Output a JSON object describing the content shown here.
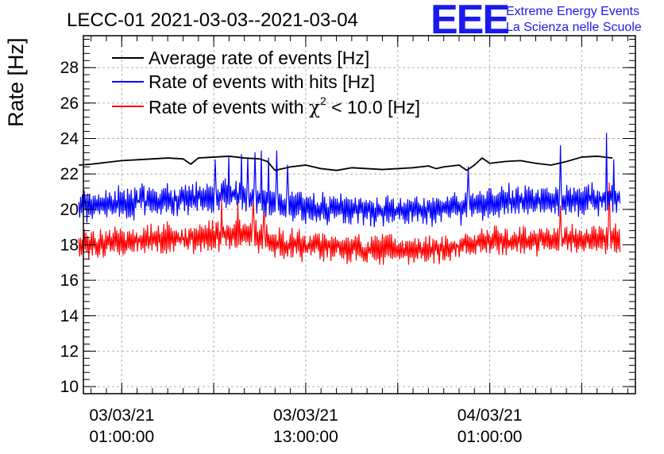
{
  "chart_data": {
    "type": "line",
    "title": "LECC-01 2021-03-03--2021-03-04",
    "xlabel": "",
    "ylabel": "Rate [Hz]",
    "ylim": [
      9.6,
      29.8
    ],
    "y_ticks": [
      10,
      12,
      14,
      16,
      18,
      20,
      22,
      24,
      26,
      28
    ],
    "xlim_hours": [
      -2.5,
      33.5
    ],
    "x_ticks": [
      {
        "hour": 0,
        "label_date": "03/03/21",
        "label_time": "01:00:00"
      },
      {
        "hour": 12,
        "label_date": "03/03/21",
        "label_time": "13:00:00"
      },
      {
        "hour": 24,
        "label_date": "04/03/21",
        "label_time": "01:00:00"
      }
    ],
    "grid": true,
    "legend_position": "top-left",
    "series": [
      {
        "name": "Average rate of events [Hz]",
        "color": "#000000",
        "style": "smooth",
        "x_hours": [
          -2.8,
          -2.0,
          -1.0,
          0.0,
          1.0,
          2.0,
          3.0,
          4.0,
          4.5,
          5.0,
          6.0,
          7.0,
          8.0,
          9.0,
          9.5,
          10.0,
          10.5,
          11.0,
          12.0,
          13.0,
          14.0,
          15.0,
          16.0,
          17.0,
          18.0,
          19.0,
          20.0,
          20.5,
          21.0,
          22.0,
          22.5,
          23.0,
          23.5,
          24.0,
          25.0,
          26.0,
          27.0,
          28.0,
          29.0,
          30.0,
          31.0,
          32.0
        ],
        "values": [
          22.5,
          22.55,
          22.65,
          22.75,
          22.8,
          22.85,
          22.9,
          22.85,
          22.55,
          22.9,
          22.95,
          23.0,
          22.9,
          22.85,
          22.7,
          22.2,
          22.3,
          22.4,
          22.5,
          22.3,
          22.2,
          22.35,
          22.3,
          22.25,
          22.3,
          22.35,
          22.45,
          22.3,
          22.4,
          22.5,
          22.2,
          22.5,
          22.9,
          22.6,
          22.7,
          22.75,
          22.6,
          22.5,
          22.7,
          22.95,
          23.0,
          22.9
        ]
      },
      {
        "name": "Rate of events with hits [Hz]",
        "color": "#0000ff",
        "style": "noisy",
        "x_start_hours": -2.8,
        "x_end_hours": 32.5,
        "samples": 600,
        "baseline_hours": [
          -2.8,
          0,
          4,
          8,
          10,
          13,
          17,
          21,
          24,
          28,
          32.5
        ],
        "baseline_values": [
          20.2,
          20.4,
          20.6,
          20.8,
          20.3,
          20.1,
          19.9,
          20.0,
          20.4,
          20.5,
          20.6
        ],
        "noise_amplitude": 0.65,
        "spikes": [
          {
            "hour": 6.1,
            "value": 22.8
          },
          {
            "hour": 7.0,
            "value": 23.0
          },
          {
            "hour": 7.8,
            "value": 23.1
          },
          {
            "hour": 8.2,
            "value": 22.9
          },
          {
            "hour": 8.7,
            "value": 23.2
          },
          {
            "hour": 9.1,
            "value": 23.3
          },
          {
            "hour": 9.6,
            "value": 22.9
          },
          {
            "hour": 10.1,
            "value": 23.3
          },
          {
            "hour": 10.8,
            "value": 22.5
          },
          {
            "hour": 22.6,
            "value": 22.4
          },
          {
            "hour": 28.6,
            "value": 23.6
          },
          {
            "hour": 31.6,
            "value": 24.3
          },
          {
            "hour": 32.1,
            "value": 22.8
          }
        ]
      },
      {
        "name": "Rate of events with χ² < 10.0 [Hz]",
        "color": "#ff0000",
        "style": "noisy",
        "x_start_hours": -2.8,
        "x_end_hours": 32.5,
        "samples": 600,
        "baseline_hours": [
          -2.8,
          0,
          4,
          8,
          10,
          13,
          17,
          21,
          24,
          28,
          32.5
        ],
        "baseline_values": [
          18.0,
          18.2,
          18.4,
          18.6,
          18.1,
          17.9,
          17.7,
          17.8,
          18.2,
          18.3,
          18.4
        ],
        "noise_amplitude": 0.6,
        "spikes": [
          {
            "hour": 6.5,
            "value": 20.5
          },
          {
            "hour": 7.6,
            "value": 20.4
          },
          {
            "hour": 8.6,
            "value": 20.6
          },
          {
            "hour": 9.3,
            "value": 20.3
          },
          {
            "hour": 28.6,
            "value": 20.2
          },
          {
            "hour": 31.8,
            "value": 21.5
          }
        ]
      }
    ]
  },
  "legend": {
    "entries": [
      {
        "label": "Average rate of events [Hz]",
        "color": "#000000"
      },
      {
        "label": "Rate of events with hits [Hz]",
        "color": "#0000ff"
      },
      {
        "label_pre": "Rate of events with ",
        "label_chi": "χ",
        "label_sup": "2",
        "label_post": " < 10.0 [Hz]",
        "color": "#ff0000"
      }
    ]
  },
  "logo": {
    "text": "EEE",
    "line1": "Extreme Energy Events",
    "line2": "La Scienza nelle Scuole",
    "color": "#1a1aee"
  }
}
